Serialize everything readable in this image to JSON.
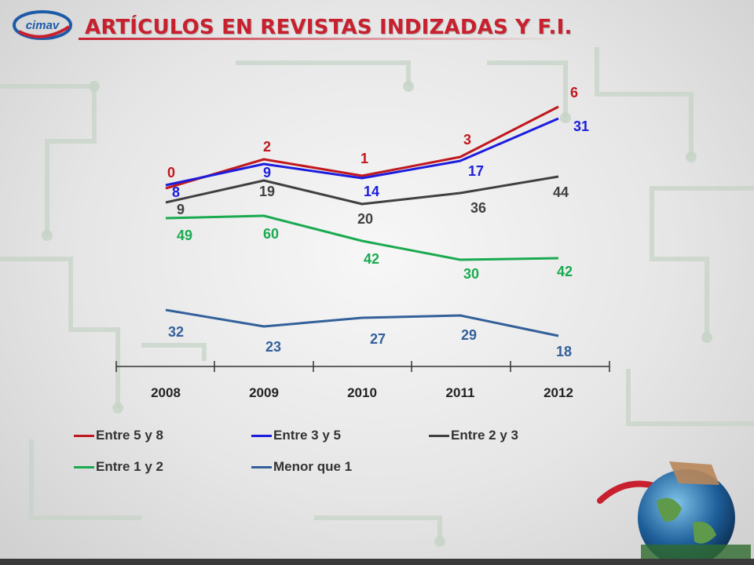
{
  "header": {
    "title": "ARTÍCULOS EN REVISTAS INDIZADAS Y F.I.",
    "logo_text": "cimav"
  },
  "colors": {
    "title": "#c8202e",
    "background": "#e6e6e6",
    "circuit": "#c9d6c9"
  },
  "legend": [
    {
      "label": "Entre 5 y 8",
      "color": "#c0181e"
    },
    {
      "label": "Entre 3 y 5",
      "color": "#1c1cde"
    },
    {
      "label": "Entre 2 y 3",
      "color": "#404040"
    },
    {
      "label": "Entre 1 y 2",
      "color": "#1aaa50"
    },
    {
      "label": "Menor que 1",
      "color": "#33609a"
    }
  ],
  "chart_data": {
    "type": "line",
    "title": "ARTÍCULOS EN REVISTAS INDIZADAS Y F.I.",
    "xlabel": "",
    "ylabel": "",
    "categories": [
      "2008",
      "2009",
      "2010",
      "2011",
      "2012"
    ],
    "legend_position": "bottom",
    "grid": false,
    "series": [
      {
        "name": "Entre 5 y 8",
        "color": "#c0181e",
        "labels": [
          "0",
          "2",
          "1",
          "3",
          "6"
        ],
        "values": [
          0,
          2,
          1,
          3,
          6
        ],
        "display_level": [
          240,
          203,
          224,
          200,
          136
        ]
      },
      {
        "name": "Entre 3 y 5",
        "color": "#1c1cde",
        "labels": [
          "8",
          "9",
          "14",
          "17",
          "31"
        ],
        "values": [
          8,
          9,
          14,
          17,
          31
        ],
        "display_level": [
          236,
          209,
          227,
          205,
          151
        ]
      },
      {
        "name": "Entre 2 y 3",
        "color": "#404040",
        "labels": [
          "9",
          "19",
          "20",
          "36",
          "44"
        ],
        "values": [
          9,
          19,
          20,
          36,
          44
        ],
        "display_level": [
          258,
          230,
          260,
          246,
          225
        ]
      },
      {
        "name": "Entre 1 y 2",
        "color": "#1aaa50",
        "labels": [
          "49",
          "60",
          "42",
          "30",
          "42"
        ],
        "values": [
          49,
          60,
          42,
          30,
          42
        ],
        "display_level": [
          278,
          275,
          307,
          331,
          329
        ]
      },
      {
        "name": "Menor que 1",
        "color": "#33609a",
        "labels": [
          "32",
          "23",
          "27",
          "29",
          "18"
        ],
        "values": [
          32,
          23,
          27,
          29,
          18
        ],
        "display_level": [
          395,
          416,
          405,
          402,
          428
        ]
      }
    ]
  }
}
